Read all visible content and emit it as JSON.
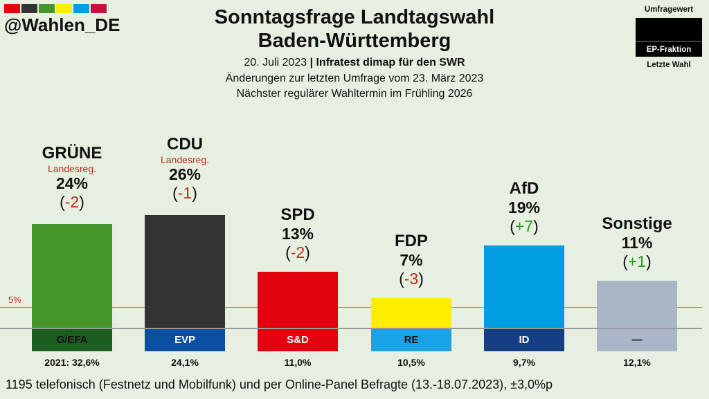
{
  "header": {
    "handle": "@Wahlen_DE",
    "title_line1": "Sonntagsfrage Landtagswahl",
    "title_line2": "Baden-Württemberg",
    "date": "20. Juli 2023",
    "institute": "Infratest dimap für den SWR",
    "changes": "Änderungen zur letzten Umfrage vom 23. März 2023",
    "next_election": "Nächster regulärer Wahltermin im Frühling 2026"
  },
  "legend": {
    "umfragewert": "Umfragewert",
    "ep_fraktion": "EP-Fraktion",
    "letzte_wahl": "Letzte Wahl"
  },
  "colors": {
    "flag": [
      "#e3000f",
      "#333333",
      "#46962b",
      "#ffed00",
      "#009ee0",
      "#c8103e"
    ]
  },
  "threshold_label": "5%",
  "chart_data": {
    "type": "bar",
    "categories": [
      "GRÜNE",
      "CDU",
      "SPD",
      "FDP",
      "AfD",
      "Sonstige"
    ],
    "values": [
      24,
      26,
      13,
      7,
      19,
      11
    ],
    "threshold": 5,
    "parties": [
      {
        "name": "GRÜNE",
        "note": "Landesreg.",
        "value": 24,
        "value_label": "24%",
        "change": "-2",
        "fraction": "G/EFA",
        "last_label": "2021: 32,6%",
        "color": "#46962b",
        "frac_color": "#1b5e20",
        "frac_text": "#111111"
      },
      {
        "name": "CDU",
        "note": "Landesreg.",
        "value": 26,
        "value_label": "26%",
        "change": "-1",
        "fraction": "EVP",
        "last_label": "24,1%",
        "color": "#333333",
        "frac_color": "#0a4fa0",
        "frac_text": "#ffffff"
      },
      {
        "name": "SPD",
        "note": "",
        "value": 13,
        "value_label": "13%",
        "change": "-2",
        "fraction": "S&D",
        "last_label": "11,0%",
        "color": "#e3000f",
        "frac_color": "#e3000f",
        "frac_text": "#ffffff"
      },
      {
        "name": "FDP",
        "note": "",
        "value": 7,
        "value_label": "7%",
        "change": "-3",
        "fraction": "RE",
        "last_label": "10,5%",
        "color": "#ffed00",
        "frac_color": "#1aa3e8",
        "frac_text": "#111111"
      },
      {
        "name": "AfD",
        "note": "",
        "value": 19,
        "value_label": "19%",
        "change": "+7",
        "fraction": "ID",
        "last_label": "9,7%",
        "color": "#009ee0",
        "frac_color": "#153e84",
        "frac_text": "#ffffff"
      },
      {
        "name": "Sonstige",
        "note": "",
        "value": 11,
        "value_label": "11%",
        "change": "+1",
        "fraction": "—",
        "last_label": "12,1%",
        "color": "#aab6c8",
        "frac_color": "#aab6c8",
        "frac_text": "#111111"
      }
    ]
  },
  "footer": "1195 telefonisch (Festnetz und Mobilfunk) und per Online-Panel Befragte (13.-18.07.2023), ±3,0%p"
}
